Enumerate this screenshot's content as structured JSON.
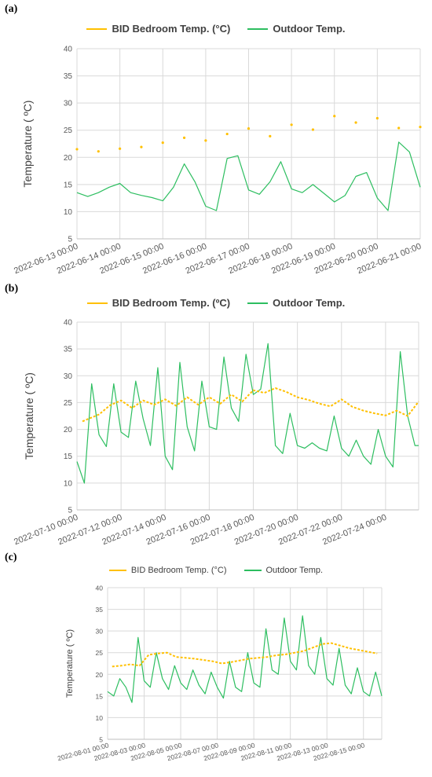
{
  "colors": {
    "bid": "#FFC000",
    "outdoor": "#2DBE60",
    "grid": "#d9d9d9",
    "axis": "#bfbfbf"
  },
  "panels": [
    {
      "label": "(a)"
    },
    {
      "label": "(b)"
    },
    {
      "label": "(c)"
    }
  ],
  "chart_data": [
    {
      "type": "line",
      "series": [
        {
          "name": "BID Bedroom Temp. (°C)",
          "style": "dotted"
        },
        {
          "name": "Outdoor Temp."
        }
      ],
      "ylabel": "Temperature ( ºC)",
      "ylim": [
        5,
        40
      ],
      "yticks": [
        "5",
        "10",
        "15",
        "20",
        "25",
        "30",
        "35",
        "40"
      ],
      "xlim": [
        "2022-06-13 00:00",
        "2022-06-21 00:00"
      ],
      "xticks": [
        "2022-06-13 00:00",
        "2022-06-14 00:00",
        "2022-06-15 00:00",
        "2022-06-16 00:00",
        "2022-06-17 00:00",
        "2022-06-18 00:00",
        "2022-06-19 00:00",
        "2022-06-20 00:00",
        "2022-06-21 00:00"
      ],
      "grid": true,
      "legend": "top",
      "bid": {
        "x": [
          "2022-06-13 00:00",
          "2022-06-13 12:00",
          "2022-06-14 00:00",
          "2022-06-14 12:00",
          "2022-06-15 00:00",
          "2022-06-15 12:00",
          "2022-06-16 00:00",
          "2022-06-16 12:00",
          "2022-06-17 00:00",
          "2022-06-17 12:00",
          "2022-06-18 00:00",
          "2022-06-18 12:00",
          "2022-06-19 00:00",
          "2022-06-19 12:00",
          "2022-06-20 00:00",
          "2022-06-20 12:00",
          "2022-06-21 00:00"
        ],
        "y": [
          21.5,
          21.1,
          21.6,
          21.9,
          22.7,
          23.6,
          23.1,
          24.3,
          25.3,
          23.9,
          26.0,
          25.1,
          27.6,
          26.4,
          27.2,
          25.4,
          25.6
        ]
      },
      "outdoor": {
        "x": [
          "2022-06-13 00:00",
          "2022-06-13 06:00",
          "2022-06-13 12:00",
          "2022-06-13 18:00",
          "2022-06-14 00:00",
          "2022-06-14 06:00",
          "2022-06-14 12:00",
          "2022-06-14 18:00",
          "2022-06-15 00:00",
          "2022-06-15 06:00",
          "2022-06-15 12:00",
          "2022-06-15 18:00",
          "2022-06-16 00:00",
          "2022-06-16 06:00",
          "2022-06-16 12:00",
          "2022-06-16 18:00",
          "2022-06-17 00:00",
          "2022-06-17 06:00",
          "2022-06-17 12:00",
          "2022-06-17 18:00",
          "2022-06-18 00:00",
          "2022-06-18 06:00",
          "2022-06-18 12:00",
          "2022-06-18 18:00",
          "2022-06-19 00:00",
          "2022-06-19 06:00",
          "2022-06-19 12:00",
          "2022-06-19 18:00",
          "2022-06-20 00:00",
          "2022-06-20 06:00",
          "2022-06-20 12:00",
          "2022-06-20 18:00",
          "2022-06-21 00:00"
        ],
        "y": [
          13.5,
          12.8,
          13.5,
          14.5,
          15.2,
          13.5,
          13.0,
          12.6,
          12.0,
          14.5,
          18.8,
          15.5,
          11.0,
          10.2,
          19.8,
          20.3,
          14.0,
          13.2,
          15.5,
          19.2,
          14.2,
          13.5,
          15.0,
          13.4,
          11.8,
          13.0,
          16.5,
          17.2,
          12.5,
          10.2,
          22.8,
          21.0,
          14.5
        ]
      }
    },
    {
      "type": "line",
      "series": [
        {
          "name": "BID Bedroom Temp. (ºC)",
          "style": "solid"
        },
        {
          "name": "Outdoor Temp."
        }
      ],
      "ylabel": "Temperature ( ºC)",
      "ylim": [
        5,
        40
      ],
      "yticks": [
        "5",
        "10",
        "15",
        "20",
        "25",
        "30",
        "35",
        "40"
      ],
      "xlim": [
        "2022-07-10 00:00",
        "2022-07-25 12:00"
      ],
      "xticks": [
        "2022-07-10 00:00",
        "2022-07-12 00:00",
        "2022-07-14 00:00",
        "2022-07-16 00:00",
        "2022-07-18 00:00",
        "2022-07-20 00:00",
        "2022-07-22 00:00",
        "2022-07-24 00:00"
      ],
      "grid": true,
      "legend": "top",
      "bid": {
        "x": [
          "2022-07-10 06:00",
          "2022-07-11 00:00",
          "2022-07-11 12:00",
          "2022-07-12 00:00",
          "2022-07-12 12:00",
          "2022-07-13 00:00",
          "2022-07-13 12:00",
          "2022-07-14 00:00",
          "2022-07-14 12:00",
          "2022-07-15 00:00",
          "2022-07-15 12:00",
          "2022-07-16 00:00",
          "2022-07-16 12:00",
          "2022-07-17 00:00",
          "2022-07-17 12:00",
          "2022-07-18 00:00",
          "2022-07-18 12:00",
          "2022-07-19 00:00",
          "2022-07-19 12:00",
          "2022-07-20 00:00",
          "2022-07-20 12:00",
          "2022-07-21 00:00",
          "2022-07-21 12:00",
          "2022-07-22 00:00",
          "2022-07-22 12:00",
          "2022-07-23 00:00",
          "2022-07-23 12:00",
          "2022-07-24 00:00",
          "2022-07-24 12:00",
          "2022-07-25 00:00",
          "2022-07-25 12:00"
        ],
        "y": [
          21.5,
          22.8,
          24.5,
          25.4,
          24.0,
          25.4,
          24.6,
          25.6,
          24.4,
          26.0,
          24.6,
          26.0,
          24.8,
          26.5,
          25.2,
          27.3,
          26.8,
          27.7,
          27.0,
          26.0,
          25.5,
          24.8,
          24.3,
          25.6,
          24.2,
          23.5,
          23.0,
          22.6,
          23.5,
          22.5,
          25.2
        ]
      },
      "outdoor": {
        "x": [
          "2022-07-10 00:00",
          "2022-07-10 08:00",
          "2022-07-10 16:00",
          "2022-07-11 00:00",
          "2022-07-11 08:00",
          "2022-07-11 16:00",
          "2022-07-12 00:00",
          "2022-07-12 08:00",
          "2022-07-12 16:00",
          "2022-07-13 00:00",
          "2022-07-13 08:00",
          "2022-07-13 16:00",
          "2022-07-14 00:00",
          "2022-07-14 08:00",
          "2022-07-14 16:00",
          "2022-07-15 00:00",
          "2022-07-15 08:00",
          "2022-07-15 16:00",
          "2022-07-16 00:00",
          "2022-07-16 08:00",
          "2022-07-16 16:00",
          "2022-07-17 00:00",
          "2022-07-17 08:00",
          "2022-07-17 16:00",
          "2022-07-18 00:00",
          "2022-07-18 08:00",
          "2022-07-18 16:00",
          "2022-07-19 00:00",
          "2022-07-19 08:00",
          "2022-07-19 16:00",
          "2022-07-20 00:00",
          "2022-07-20 08:00",
          "2022-07-20 16:00",
          "2022-07-21 00:00",
          "2022-07-21 08:00",
          "2022-07-21 16:00",
          "2022-07-22 00:00",
          "2022-07-22 08:00",
          "2022-07-22 16:00",
          "2022-07-23 00:00",
          "2022-07-23 08:00",
          "2022-07-23 16:00",
          "2022-07-24 00:00",
          "2022-07-24 08:00",
          "2022-07-24 16:00",
          "2022-07-25 00:00",
          "2022-07-25 08:00",
          "2022-07-25 12:00"
        ],
        "y": [
          14.0,
          10.0,
          28.5,
          19.0,
          16.8,
          28.5,
          19.5,
          18.5,
          29.0,
          22.0,
          17.0,
          31.5,
          15.0,
          12.5,
          32.5,
          20.5,
          16.0,
          29.0,
          20.5,
          20.0,
          33.5,
          24.0,
          21.5,
          34.0,
          26.5,
          27.5,
          36.0,
          17.0,
          15.5,
          23.0,
          17.0,
          16.5,
          17.5,
          16.5,
          16.0,
          22.5,
          16.5,
          15.0,
          18.0,
          15.0,
          13.5,
          20.0,
          15.0,
          13.0,
          34.5,
          22.5,
          17.0,
          17.0
        ]
      }
    },
    {
      "type": "line",
      "series": [
        {
          "name": "BID Bedroom Temp. (°C)",
          "style": "solid"
        },
        {
          "name": "Outdoor Temp."
        }
      ],
      "ylabel": "Temperature ( ºC)",
      "ylim": [
        5,
        40
      ],
      "yticks": [
        "5",
        "10",
        "15",
        "20",
        "25",
        "30",
        "35",
        "40"
      ],
      "xlim": [
        "2022-08-01 00:00",
        "2022-08-16 00:00"
      ],
      "xticks": [
        "2022-08-01 00:00",
        "2022-08-03 00:00",
        "2022-08-05 00:00",
        "2022-08-07 00:00",
        "2022-08-09 00:00",
        "2022-08-11 00:00",
        "2022-08-13 00:00",
        "2022-08-15 00:00"
      ],
      "grid": true,
      "legend": "top",
      "bid": {
        "x": [
          "2022-08-01 06:00",
          "2022-08-01 18:00",
          "2022-08-02 06:00",
          "2022-08-02 18:00",
          "2022-08-03 06:00",
          "2022-08-03 18:00",
          "2022-08-04 06:00",
          "2022-08-04 18:00",
          "2022-08-05 06:00",
          "2022-08-05 18:00",
          "2022-08-06 06:00",
          "2022-08-06 18:00",
          "2022-08-07 06:00",
          "2022-08-07 18:00",
          "2022-08-08 06:00",
          "2022-08-08 18:00",
          "2022-08-09 06:00",
          "2022-08-09 18:00",
          "2022-08-10 06:00",
          "2022-08-10 18:00",
          "2022-08-11 06:00",
          "2022-08-11 18:00",
          "2022-08-12 06:00",
          "2022-08-12 18:00",
          "2022-08-13 06:00",
          "2022-08-13 18:00",
          "2022-08-14 06:00",
          "2022-08-14 18:00",
          "2022-08-15 06:00",
          "2022-08-15 18:00"
        ],
        "y": [
          21.8,
          22.0,
          22.3,
          22.0,
          24.5,
          24.8,
          25.0,
          24.0,
          23.8,
          23.6,
          23.3,
          23.0,
          22.5,
          22.8,
          23.2,
          23.6,
          23.8,
          24.0,
          24.4,
          24.6,
          25.0,
          25.4,
          26.2,
          27.0,
          27.2,
          26.6,
          26.0,
          25.6,
          25.2,
          24.8
        ]
      },
      "outdoor": {
        "x": [
          "2022-08-01 00:00",
          "2022-08-01 08:00",
          "2022-08-01 16:00",
          "2022-08-02 00:00",
          "2022-08-02 08:00",
          "2022-08-02 16:00",
          "2022-08-03 00:00",
          "2022-08-03 08:00",
          "2022-08-03 16:00",
          "2022-08-04 00:00",
          "2022-08-04 08:00",
          "2022-08-04 16:00",
          "2022-08-05 00:00",
          "2022-08-05 08:00",
          "2022-08-05 16:00",
          "2022-08-06 00:00",
          "2022-08-06 08:00",
          "2022-08-06 16:00",
          "2022-08-07 00:00",
          "2022-08-07 08:00",
          "2022-08-07 16:00",
          "2022-08-08 00:00",
          "2022-08-08 08:00",
          "2022-08-08 16:00",
          "2022-08-09 00:00",
          "2022-08-09 08:00",
          "2022-08-09 16:00",
          "2022-08-10 00:00",
          "2022-08-10 08:00",
          "2022-08-10 16:00",
          "2022-08-11 00:00",
          "2022-08-11 08:00",
          "2022-08-11 16:00",
          "2022-08-12 00:00",
          "2022-08-12 08:00",
          "2022-08-12 16:00",
          "2022-08-13 00:00",
          "2022-08-13 08:00",
          "2022-08-13 16:00",
          "2022-08-14 00:00",
          "2022-08-14 08:00",
          "2022-08-14 16:00",
          "2022-08-15 00:00",
          "2022-08-15 08:00",
          "2022-08-15 16:00",
          "2022-08-16 00:00"
        ],
        "y": [
          16.0,
          15.0,
          19.0,
          17.0,
          13.5,
          28.5,
          18.5,
          17.0,
          25.0,
          19.0,
          16.5,
          22.0,
          18.0,
          16.5,
          21.0,
          17.5,
          15.5,
          20.5,
          17.0,
          14.5,
          23.0,
          17.0,
          16.0,
          25.0,
          18.0,
          17.0,
          30.5,
          21.0,
          20.0,
          33.0,
          23.0,
          21.0,
          33.5,
          22.0,
          20.0,
          28.5,
          19.0,
          17.5,
          26.0,
          17.5,
          15.5,
          21.5,
          16.0,
          15.0,
          20.5,
          15.0
        ]
      }
    }
  ]
}
